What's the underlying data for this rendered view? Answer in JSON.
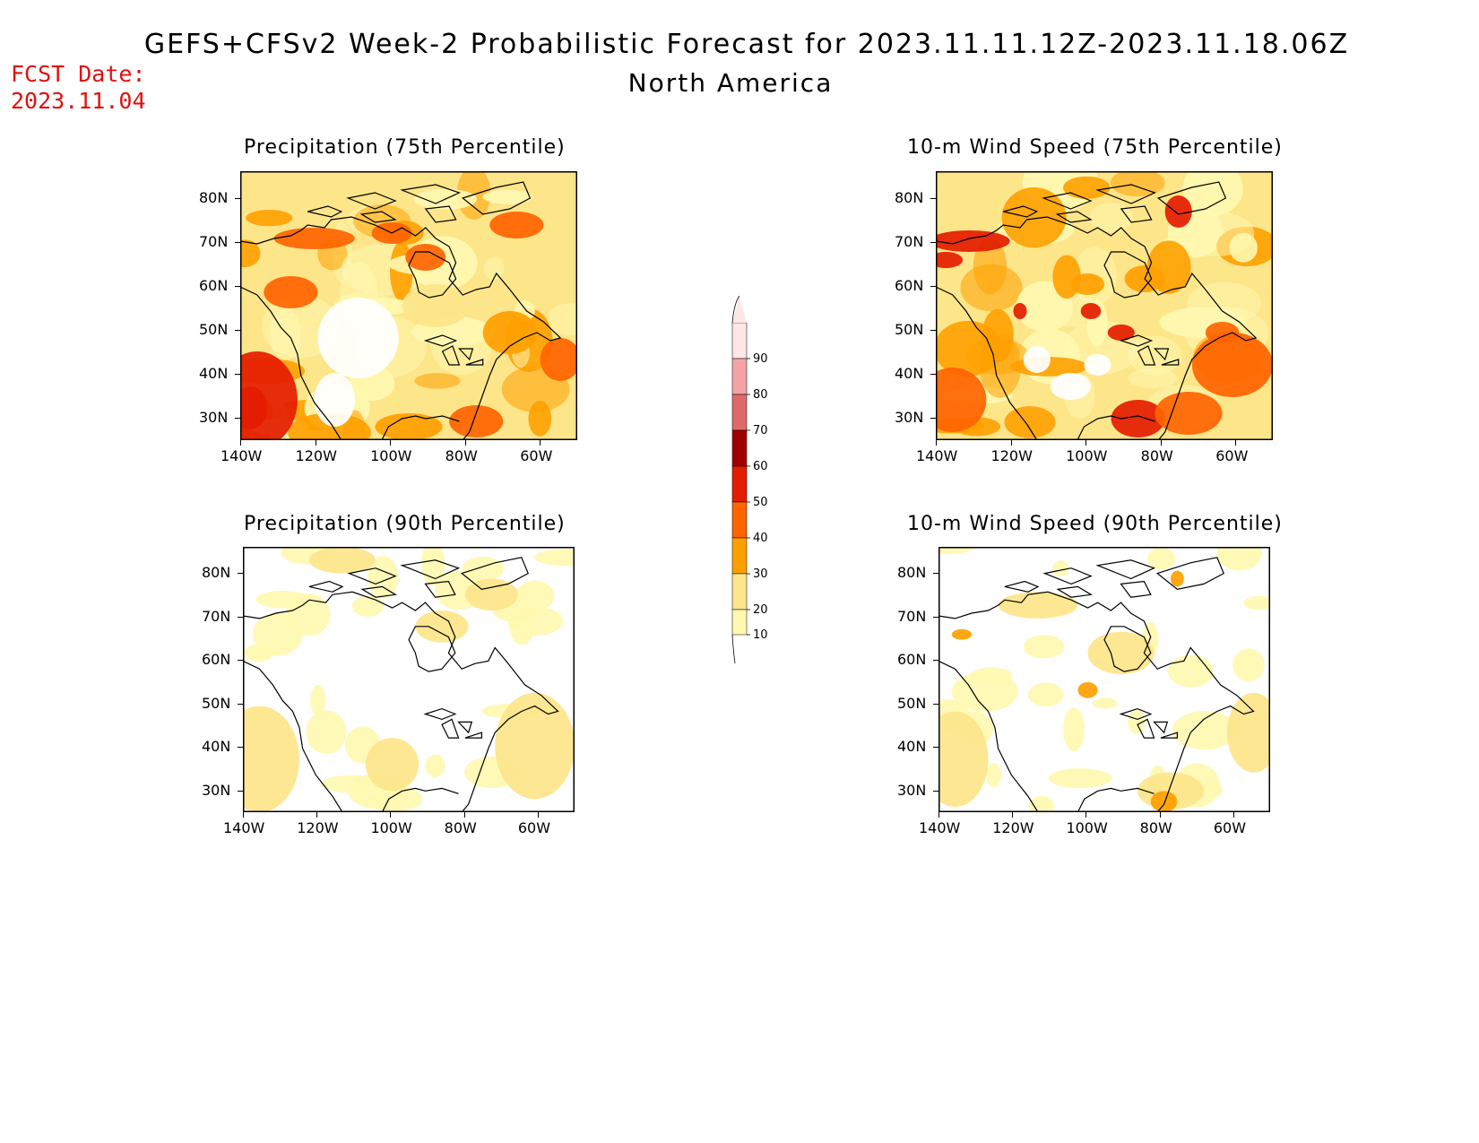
{
  "header": {
    "title": "GEFS+CFSv2 Week-2 Probabilistic Forecast for 2023.11.11.12Z-2023.11.18.06Z",
    "subtitle": "North America",
    "fcst_label": "FCST Date:",
    "fcst_date": "2023.11.04"
  },
  "axes": {
    "lat_ticks": [
      "80N",
      "70N",
      "60N",
      "50N",
      "40N",
      "30N"
    ],
    "lon_ticks": [
      "140W",
      "120W",
      "100W",
      "80W",
      "60W"
    ]
  },
  "panels": [
    {
      "id": "precip75",
      "title": "Precipitation (75th Percentile)",
      "intensity": "high"
    },
    {
      "id": "wind75",
      "title": "10-m Wind Speed (75th Percentile)",
      "intensity": "high"
    },
    {
      "id": "precip90",
      "title": "Precipitation (90th Percentile)",
      "intensity": "low"
    },
    {
      "id": "wind90",
      "title": "10-m Wind Speed (90th Percentile)",
      "intensity": "low"
    }
  ],
  "colorbar": {
    "levels": [
      "10",
      "20",
      "30",
      "40",
      "50",
      "60",
      "70",
      "80",
      "90"
    ],
    "colors": [
      "#fff8b0",
      "#fde58a",
      "#ffa000",
      "#ff6400",
      "#e41c00",
      "#a00000",
      "#e06a6a",
      "#f3a3a3",
      "#fde6e6"
    ]
  }
}
